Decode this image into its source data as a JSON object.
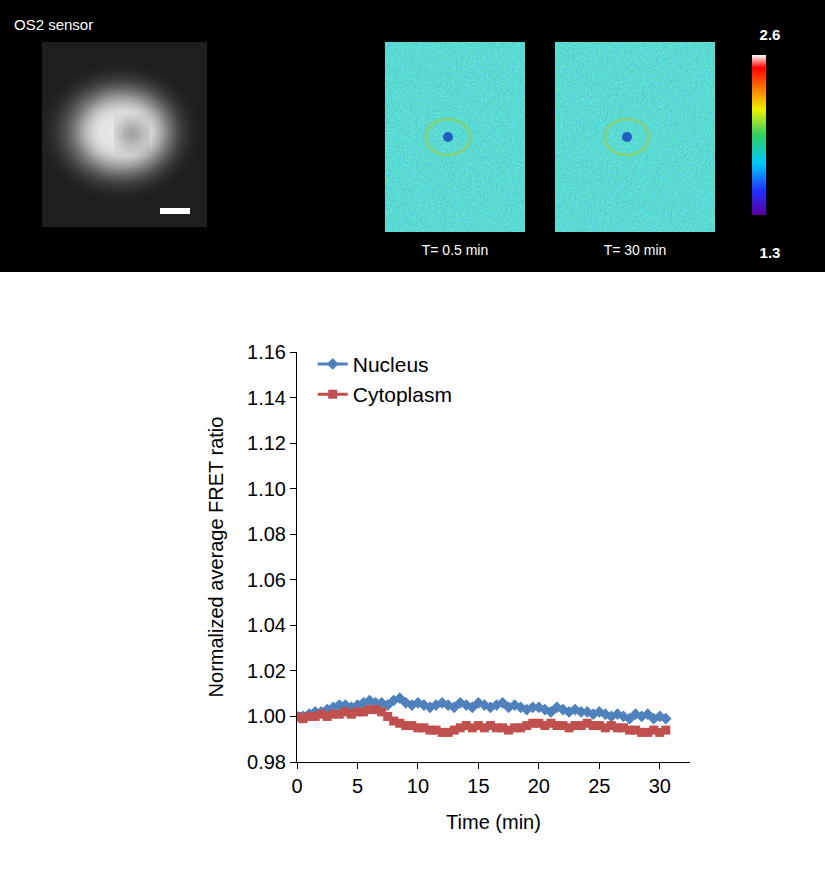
{
  "image_panel": {
    "label": "OS2 sensor",
    "images": [
      {
        "caption": "T= 0.5 min"
      },
      {
        "caption": "T= 30 min"
      }
    ],
    "colorbar": {
      "max": 2.6,
      "min": 1.3
    }
  },
  "chart_data": {
    "type": "line",
    "xlabel": "Time (min)",
    "ylabel": "Normalized average FRET ratio",
    "x": [
      0,
      0.5,
      1,
      1.5,
      2,
      2.5,
      3,
      3.5,
      4,
      4.5,
      5,
      5.5,
      6,
      6.5,
      7,
      7.5,
      8,
      8.5,
      9,
      9.5,
      10,
      10.5,
      11,
      11.5,
      12,
      12.5,
      13,
      13.5,
      14,
      14.5,
      15,
      15.5,
      16,
      16.5,
      17,
      17.5,
      18,
      18.5,
      19,
      19.5,
      20,
      20.5,
      21,
      21.5,
      22,
      22.5,
      23,
      23.5,
      24,
      24.5,
      25,
      25.5,
      26,
      26.5,
      27,
      27.5,
      28,
      28.5,
      29,
      29.5,
      30,
      30.5
    ],
    "series": [
      {
        "name": "Nucleus",
        "color": "#4f81bd",
        "marker": "diamond",
        "line_style": "solid",
        "values": [
          1.0,
          1.0,
          1.001,
          1.002,
          1.002,
          1.003,
          1.004,
          1.005,
          1.005,
          1.004,
          1.005,
          1.006,
          1.007,
          1.006,
          1.006,
          1.005,
          1.007,
          1.008,
          1.006,
          1.005,
          1.006,
          1.005,
          1.004,
          1.005,
          1.006,
          1.005,
          1.004,
          1.006,
          1.005,
          1.004,
          1.006,
          1.005,
          1.004,
          1.005,
          1.006,
          1.004,
          1.005,
          1.004,
          1.003,
          1.004,
          1.004,
          1.003,
          1.002,
          1.004,
          1.003,
          1.002,
          1.003,
          1.002,
          1.002,
          1.001,
          1.002,
          1.001,
          1.0,
          1.001,
          1.0,
          0.999,
          1.001,
          1.0,
          1.001,
          0.999,
          1.0,
          0.999
        ]
      },
      {
        "name": "Cytoplasm",
        "color": "#c0504d",
        "marker": "square",
        "line_style": "solid",
        "values": [
          1.0,
          0.999,
          1.0,
          1.0,
          1.001,
          1.0,
          1.001,
          1.001,
          1.002,
          1.001,
          1.002,
          1.002,
          1.003,
          1.003,
          1.002,
          1.0,
          0.998,
          0.997,
          0.996,
          0.996,
          0.995,
          0.995,
          0.994,
          0.994,
          0.993,
          0.993,
          0.994,
          0.995,
          0.996,
          0.995,
          0.996,
          0.995,
          0.996,
          0.995,
          0.995,
          0.994,
          0.995,
          0.995,
          0.996,
          0.997,
          0.997,
          0.996,
          0.997,
          0.996,
          0.996,
          0.995,
          0.996,
          0.996,
          0.997,
          0.996,
          0.996,
          0.995,
          0.996,
          0.995,
          0.995,
          0.994,
          0.994,
          0.993,
          0.993,
          0.994,
          0.993,
          0.994
        ]
      }
    ],
    "xlim": [
      0,
      32.5
    ],
    "xticks": [
      0,
      5,
      10,
      15,
      20,
      25,
      30
    ],
    "ylim": [
      0.98,
      1.16
    ],
    "yticks": [
      0.98,
      {
        "value": 1,
        "label": "1.00"
      },
      1.02,
      1.04,
      1.06,
      1.08,
      {
        "value": 1.1,
        "label": "1.10"
      },
      1.12,
      1.14,
      1.16
    ],
    "grid": false,
    "legend": "upper left"
  }
}
